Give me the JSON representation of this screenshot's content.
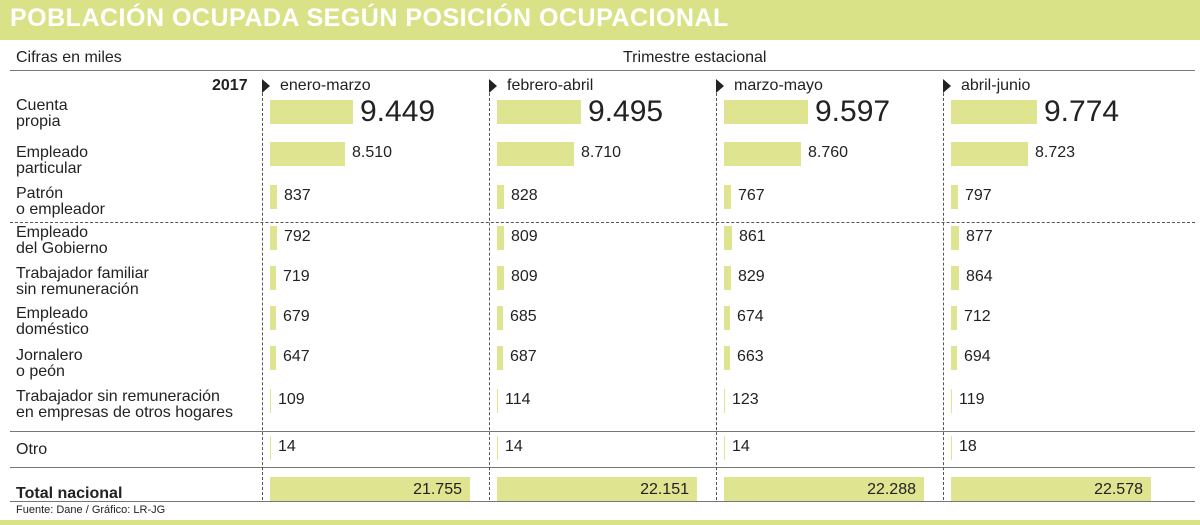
{
  "title": "POBLACIÓN OCUPADA SEGÚN POSICIÓN OCUPACIONAL",
  "units_label": "Cifras en miles",
  "period_label": "Trimestre estacional",
  "year": "2017",
  "source": "Fuente: Dane / Gráfico: LR-JG",
  "colors": {
    "bar": "#dee48f",
    "title_bg": "#d9e287",
    "title_text": "#ffffff"
  },
  "chart_data": {
    "type": "bar",
    "title": "POBLACIÓN OCUPADA SEGÚN POSICIÓN OCUPACIONAL",
    "units": "Cifras en miles",
    "periods": [
      "enero-marzo",
      "febrero-abril",
      "marzo-mayo",
      "abril-junio"
    ],
    "categories": [
      "Cuenta\npropia",
      "Empleado\nparticular",
      "Patrón\no empleador",
      "Empleado\ndel Gobierno",
      "Trabajador familiar\nsin remuneración",
      "Empleado\ndoméstico",
      "Jornalero\no peón",
      "Trabajador sin remuneración\nen empresas de otros hogares",
      "Otro"
    ],
    "series": [
      {
        "name": "enero-marzo",
        "values": [
          9449,
          8510,
          837,
          792,
          719,
          679,
          647,
          109,
          14
        ],
        "labels": [
          "9.449",
          "8.510",
          "837",
          "792",
          "719",
          "679",
          "647",
          "109",
          "14"
        ],
        "total": 21755,
        "total_label": "21.755"
      },
      {
        "name": "febrero-abril",
        "values": [
          9495,
          8710,
          828,
          809,
          809,
          685,
          687,
          114,
          14
        ],
        "labels": [
          "9.495",
          "8.710",
          "828",
          "809",
          "809",
          "685",
          "687",
          "114",
          "14"
        ],
        "total": 22151,
        "total_label": "22.151"
      },
      {
        "name": "marzo-mayo",
        "values": [
          9597,
          8760,
          767,
          861,
          829,
          674,
          663,
          123,
          14
        ],
        "labels": [
          "9.597",
          "8.760",
          "767",
          "861",
          "829",
          "674",
          "663",
          "123",
          "14"
        ],
        "total": 22288,
        "total_label": "22.288"
      },
      {
        "name": "abril-junio",
        "values": [
          9774,
          8723,
          797,
          877,
          864,
          712,
          694,
          119,
          18
        ],
        "labels": [
          "9.774",
          "8.723",
          "797",
          "877",
          "864",
          "712",
          "694",
          "119",
          "18"
        ],
        "total": 22578,
        "total_label": "22.578"
      }
    ],
    "total_row_label": "Total nacional"
  }
}
